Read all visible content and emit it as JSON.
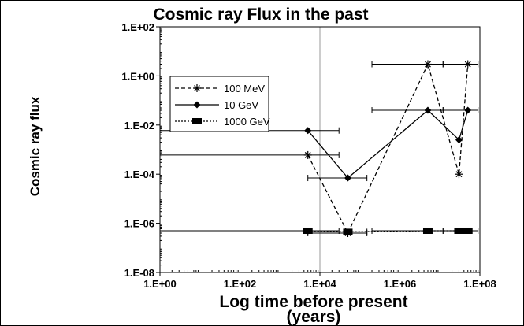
{
  "chart_data": {
    "type": "line",
    "title": "Cosmic ray Flux in the past",
    "xlabel_line1": "Log time before present",
    "xlabel_line2": "(years)",
    "ylabel": "Cosmic ray flux",
    "x_scale": "log",
    "y_scale": "log",
    "xlim": [
      1,
      100000000
    ],
    "ylim": [
      1e-08,
      100
    ],
    "x_ticks": [
      {
        "value": 1,
        "label": "1.E+00"
      },
      {
        "value": 100,
        "label": "1.E+02"
      },
      {
        "value": 10000,
        "label": "1.E+04"
      },
      {
        "value": 1000000,
        "label": "1.E+06"
      },
      {
        "value": 100000000,
        "label": "1.E+08"
      }
    ],
    "y_ticks": [
      {
        "value": 100,
        "label": "1.E+02"
      },
      {
        "value": 1,
        "label": "1.E+00"
      },
      {
        "value": 0.01,
        "label": "1.E-02"
      },
      {
        "value": 0.0001,
        "label": "1.E-04"
      },
      {
        "value": 1e-06,
        "label": "1.E-06"
      },
      {
        "value": 1e-08,
        "label": "1.E-08"
      }
    ],
    "grid": "vertical",
    "legend_position": "upper-left",
    "series": [
      {
        "name": "100 MeV",
        "marker": "asterisk",
        "line_style": "dashed",
        "color": "#000000",
        "points": [
          {
            "x": 5000,
            "y": 0.0006,
            "xerr": [
              1,
              30000
            ]
          },
          {
            "x": 50000,
            "y": 4e-07,
            "xerr": [
              5000,
              150000
            ]
          },
          {
            "x": 5000000,
            "y": 3,
            "xerr": [
              200000,
              12000000
            ]
          },
          {
            "x": 30000000,
            "y": 0.0001
          },
          {
            "x": 50000000,
            "y": 3,
            "xerr": [
              12000000,
              90000000
            ]
          }
        ]
      },
      {
        "name": "10 GeV",
        "marker": "diamond",
        "line_style": "solid",
        "color": "#000000",
        "points": [
          {
            "x": 5000,
            "y": 0.006,
            "xerr": [
              1,
              30000
            ]
          },
          {
            "x": 50000,
            "y": 7e-05,
            "xerr": [
              5000,
              150000
            ]
          },
          {
            "x": 5000000,
            "y": 0.04,
            "xerr": [
              200000,
              12000000
            ]
          },
          {
            "x": 30000000,
            "y": 0.0025
          },
          {
            "x": 50000000,
            "y": 0.04,
            "xerr": [
              12000000,
              90000000
            ]
          }
        ]
      },
      {
        "name": "1000 GeV",
        "marker": "square",
        "line_style": "dotted",
        "color": "#000000",
        "points": [
          {
            "x": 5000,
            "y": 5e-07,
            "xerr": [
              1,
              30000
            ]
          },
          {
            "x": 50000,
            "y": 4.5e-07,
            "xerr": [
              5000,
              150000
            ]
          },
          {
            "x": 5000000,
            "y": 5e-07,
            "xerr": [
              200000,
              12000000
            ]
          },
          {
            "x": 30000000,
            "y": 5e-07
          },
          {
            "x": 50000000,
            "y": 5e-07,
            "xerr": [
              12000000,
              90000000
            ]
          }
        ]
      }
    ]
  }
}
